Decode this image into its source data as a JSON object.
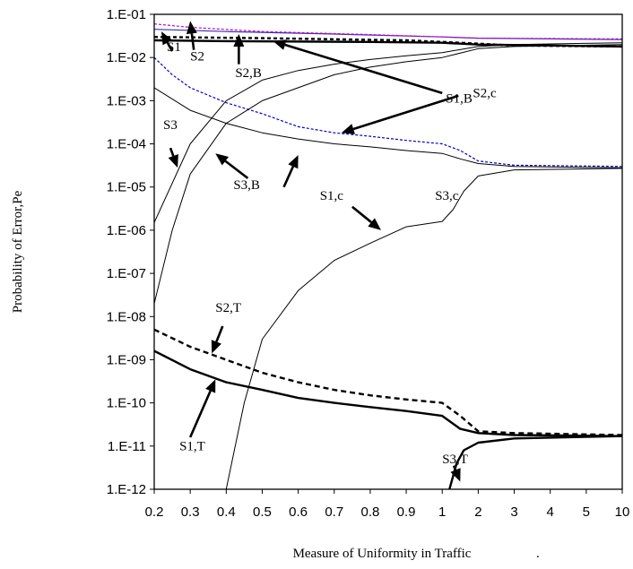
{
  "chart_data": {
    "type": "line",
    "title": "",
    "xlabel": "Measure of Uniformity in Traffic",
    "xlabel_suffix": ".",
    "ylabel": "Probability of Error,Pe",
    "y_scale": "log",
    "ylim": [
      1e-12,
      0.1
    ],
    "grid": false,
    "legend": "none",
    "x_ticks": [
      "0.2",
      "0.3",
      "0.4",
      "0.5",
      "0.6",
      "0.7",
      "0.8",
      "0.9",
      "1",
      "2",
      "3",
      "4",
      "5",
      "10"
    ],
    "y_ticks": [
      "1.E-01",
      "1.E-02",
      "1.E-03",
      "1.E-04",
      "1.E-05",
      "1.E-06",
      "1.E-07",
      "1.E-08",
      "1.E-09",
      "1.E-10",
      "1.E-11",
      "1.E-12"
    ],
    "series": [
      {
        "key": "s1b",
        "color": "#000000",
        "width": 2.4,
        "dash": "",
        "x": [
          0.2,
          0.4,
          0.8,
          1,
          2,
          10
        ],
        "y": [
          0.025,
          0.024,
          0.023,
          0.022,
          0.02,
          0.018
        ]
      },
      {
        "key": "s2b",
        "color": "#000000",
        "width": 2.4,
        "dash": "4,3",
        "x": [
          0.2,
          0.5,
          0.9,
          1.5,
          3,
          10
        ],
        "y": [
          0.03,
          0.028,
          0.025,
          0.022,
          0.019,
          0.018
        ]
      },
      {
        "key": "s1",
        "color": "#3333aa",
        "width": 1.2,
        "dash": "",
        "x": [
          0.2,
          0.4,
          0.7,
          1,
          2,
          4,
          10
        ],
        "y": [
          0.045,
          0.04,
          0.035,
          0.03,
          0.028,
          0.027,
          0.026
        ]
      },
      {
        "key": "s2",
        "color": "#cc00cc",
        "width": 1.2,
        "dash": "3,2",
        "x": [
          0.2,
          0.3,
          0.5,
          0.8,
          1,
          2,
          10
        ],
        "y": [
          0.06,
          0.05,
          0.04,
          0.034,
          0.03,
          0.028,
          0.027
        ]
      },
      {
        "key": "s2c",
        "color": "#0000cc",
        "width": 1.2,
        "dash": "3,2",
        "x": [
          0.2,
          0.25,
          0.3,
          0.4,
          0.5,
          0.6,
          0.7,
          0.8,
          0.9,
          1,
          1.5,
          2,
          3,
          10
        ],
        "y": [
          0.01,
          0.004,
          0.002,
          0.0009,
          0.0005,
          0.00025,
          0.00018,
          0.00015,
          0.00012,
          0.0001,
          7e-05,
          4e-05,
          3.2e-05,
          3e-05
        ]
      },
      {
        "key": "s1c",
        "color": "#000000",
        "width": 1.0,
        "dash": "",
        "x": [
          0.2,
          0.3,
          0.4,
          0.5,
          0.6,
          0.7,
          0.8,
          0.9,
          1,
          1.5,
          2,
          3,
          10
        ],
        "y": [
          0.002,
          0.0006,
          0.0003,
          0.00018,
          0.00013,
          0.0001,
          8.5e-05,
          7e-05,
          6e-05,
          4.5e-05,
          3.5e-05,
          3e-05,
          2.8e-05
        ]
      },
      {
        "key": "s3",
        "color": "#000000",
        "width": 1.0,
        "dash": "",
        "x": [
          0.2,
          0.3,
          0.4,
          0.5,
          0.6,
          0.7,
          0.8,
          0.9,
          1,
          2,
          3,
          10
        ],
        "y": [
          1.5e-06,
          0.0001,
          0.001,
          0.003,
          0.005,
          0.007,
          0.009,
          0.011,
          0.013,
          0.018,
          0.02,
          0.022
        ]
      },
      {
        "key": "s3b",
        "color": "#000000",
        "width": 1.0,
        "dash": "",
        "x": [
          0.2,
          0.25,
          0.3,
          0.4,
          0.5,
          0.6,
          0.7,
          0.8,
          0.9,
          1,
          2,
          3,
          10
        ],
        "y": [
          2e-08,
          1e-06,
          2e-05,
          0.0003,
          0.001,
          0.002,
          0.004,
          0.006,
          0.008,
          0.01,
          0.016,
          0.018,
          0.02
        ]
      },
      {
        "key": "s3c",
        "color": "#000000",
        "width": 1.0,
        "dash": "",
        "x": [
          0.4,
          0.45,
          0.5,
          0.6,
          0.7,
          0.8,
          0.9,
          1,
          1.3,
          1.6,
          2,
          3,
          10
        ],
        "y": [
          1e-12,
          1e-10,
          3e-09,
          4e-08,
          2e-07,
          5e-07,
          1.2e-06,
          1.6e-06,
          3e-06,
          8e-06,
          1.8e-05,
          2.5e-05,
          2.7e-05
        ]
      },
      {
        "key": "s2t",
        "color": "#000000",
        "width": 2.4,
        "dash": "6,4",
        "x": [
          0.2,
          0.3,
          0.4,
          0.5,
          0.6,
          0.7,
          0.8,
          0.9,
          1,
          1.5,
          2,
          3,
          10
        ],
        "y": [
          5e-09,
          2e-09,
          1e-09,
          5e-10,
          3e-10,
          2e-10,
          1.5e-10,
          1.2e-10,
          1e-10,
          5e-11,
          2.2e-11,
          2e-11,
          1.8e-11
        ]
      },
      {
        "key": "s1t",
        "color": "#000000",
        "width": 2.4,
        "dash": "",
        "x": [
          0.2,
          0.3,
          0.4,
          0.5,
          0.6,
          0.7,
          0.8,
          0.9,
          1,
          1.5,
          2,
          3,
          10
        ],
        "y": [
          1.6e-09,
          6e-10,
          3e-10,
          2e-10,
          1.3e-10,
          1e-10,
          8e-11,
          6.5e-11,
          5e-11,
          2.5e-11,
          2e-11,
          1.8e-11,
          1.7e-11
        ]
      },
      {
        "key": "s3t",
        "color": "#000000",
        "width": 2.4,
        "dash": "",
        "x": [
          1.2,
          1.4,
          1.6,
          2,
          3,
          10
        ],
        "y": [
          1e-12,
          4e-12,
          8e-12,
          1.2e-11,
          1.5e-11,
          1.7e-11
        ]
      }
    ],
    "annotations": [
      {
        "label": "S1",
        "lx": 0.235,
        "ly": 0.014,
        "ax": 0.25,
        "ay": 0.014,
        "hx": 0.22,
        "hy": 0.04
      },
      {
        "label": "S2",
        "lx": 0.3,
        "ly": 0.0085,
        "ax": 0.31,
        "ay": 0.015,
        "hx": 0.3,
        "hy": 0.07
      },
      {
        "label": "S2,B",
        "lx": 0.425,
        "ly": 0.0035,
        "ax": 0.435,
        "ay": 0.007,
        "hx": 0.435,
        "hy": 0.035
      },
      {
        "label": "S1,B",
        "lx": 1.1,
        "ly": 0.0009,
        "ax": 1.0,
        "ay": 0.0015,
        "hx": 0.53,
        "hy": 0.024
      },
      {
        "label": "S2,c",
        "lx": 1.85,
        "ly": 0.0012,
        "ax": 1.45,
        "ay": 0.0013,
        "hx": 0.72,
        "hy": 0.00018
      },
      {
        "label": "S3",
        "lx": 0.225,
        "ly": 0.00022,
        "ax": 0.245,
        "ay": 8e-05,
        "hx": 0.265,
        "hy": 2.8e-05
      },
      {
        "label": "S3,B",
        "lx": 0.42,
        "ly": 9e-06,
        "ax": 0.46,
        "ay": 1.6e-05,
        "hx": 0.37,
        "hy": 6e-05
      },
      {
        "label": "S1,c",
        "lx": 0.66,
        "ly": 5e-06,
        "ax": 0.56,
        "ay": 1e-05,
        "hx": 0.6,
        "hy": 5.5e-05
      },
      {
        "label": "S3,c",
        "lx": 0.98,
        "ly": 5e-06,
        "ax": 0.75,
        "ay": 3.5e-06,
        "hx": 0.83,
        "hy": 1e-06
      },
      {
        "label": "S2,T",
        "lx": 0.37,
        "ly": 1.3e-08,
        "ax": 0.39,
        "ay": 6e-09,
        "hx": 0.36,
        "hy": 1.4e-09
      },
      {
        "label": "S1,T",
        "lx": 0.27,
        "ly": 8e-12,
        "ax": 0.3,
        "ay": 1.6e-11,
        "hx": 0.37,
        "hy": 3.5e-10
      },
      {
        "label": "S3,T",
        "lx": 1.0,
        "ly": 4e-12,
        "ax": 1.32,
        "ay": 3.5e-12,
        "hx": 1.5,
        "hy": 1.5e-12
      }
    ]
  }
}
